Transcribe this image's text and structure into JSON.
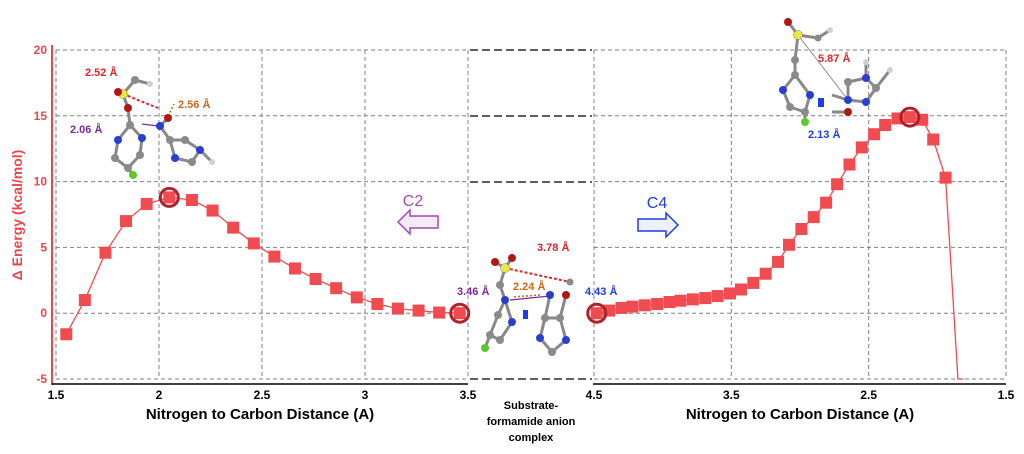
{
  "chart_data": [
    {
      "type": "line",
      "panel": "left",
      "xlabel": "Nitrogen to Carbon Distance (A)",
      "ylabel": "Δ Energy (kcal/mol)",
      "xlim": [
        1.5,
        3.5
      ],
      "ylim": [
        -5,
        20
      ],
      "x_ticks": [
        "1.5",
        "2",
        "2.5",
        "3",
        "3.5"
      ],
      "y_ticks": [
        "-5",
        "0",
        "5",
        "10",
        "15",
        "20"
      ],
      "grid": true,
      "direction_label": "C2",
      "x": [
        1.55,
        1.64,
        1.74,
        1.84,
        1.94,
        2.05,
        2.16,
        2.26,
        2.36,
        2.46,
        2.56,
        2.66,
        2.76,
        2.86,
        2.96,
        3.06,
        3.16,
        3.26,
        3.36,
        3.46
      ],
      "values": [
        -1.6,
        1.0,
        4.6,
        7.0,
        8.3,
        8.8,
        8.6,
        7.8,
        6.5,
        5.3,
        4.3,
        3.4,
        2.6,
        1.9,
        1.2,
        0.7,
        0.35,
        0.2,
        0.05,
        0.0
      ],
      "highlighted_points": [
        {
          "x": 2.05,
          "y": 8.8
        },
        {
          "x": 3.46,
          "y": 0.0
        }
      ],
      "annotations": [
        "2.52 Å",
        "2.56 Å",
        "2.06 Å"
      ]
    },
    {
      "type": "line",
      "panel": "right",
      "xlabel": "Nitrogen to Carbon Distance (A)",
      "xlim": [
        4.5,
        1.5
      ],
      "ylim": [
        -5,
        20
      ],
      "x_ticks": [
        "4.5",
        "3.5",
        "2.5",
        "1.5"
      ],
      "grid": true,
      "direction_label": "C4",
      "x": [
        4.48,
        4.39,
        4.3,
        4.22,
        4.13,
        4.04,
        3.95,
        3.87,
        3.78,
        3.69,
        3.6,
        3.51,
        3.43,
        3.34,
        3.25,
        3.16,
        3.08,
        2.99,
        2.9,
        2.81,
        2.73,
        2.64,
        2.55,
        2.46,
        2.38,
        2.29,
        2.2,
        2.11,
        2.03,
        1.94,
        1.85,
        1.81
      ],
      "values": [
        0.0,
        0.2,
        0.4,
        0.5,
        0.6,
        0.7,
        0.85,
        0.95,
        1.05,
        1.15,
        1.3,
        1.5,
        1.8,
        2.3,
        3.0,
        3.9,
        5.2,
        6.4,
        7.3,
        8.4,
        9.8,
        11.3,
        12.6,
        13.6,
        14.3,
        14.8,
        14.9,
        14.7,
        13.2,
        10.3,
        -5.0,
        -5.0
      ],
      "highlighted_points": [
        {
          "x": 4.48,
          "y": 0.0
        },
        {
          "x": 2.2,
          "y": 14.9
        }
      ],
      "annotations": [
        "5.87 Å",
        "2.13 Å"
      ]
    },
    {
      "type": "table",
      "panel": "center",
      "label": "Substrate-formamide anion complex",
      "annotations": [
        "3.78 Å",
        "3.46 Å",
        "2.24 Å",
        "4.43 Å"
      ]
    }
  ],
  "colors": {
    "series": "#f04b50",
    "highlight": "#b0222a",
    "grid": "#808080",
    "c2": "#a347b5",
    "c4": "#1f3de0",
    "ann_red": "#e0242c",
    "ann_orange": "#c7681a",
    "ann_purple": "#7b2a9a",
    "ann_blue": "#1f3de0"
  }
}
